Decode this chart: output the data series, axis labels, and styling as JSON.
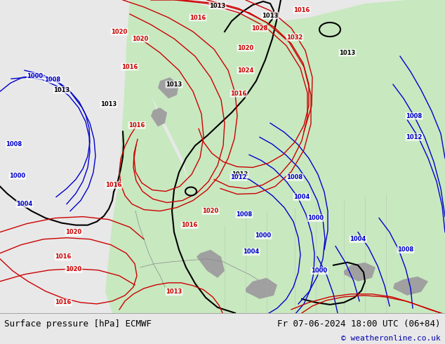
{
  "title_left": "Surface pressure [hPa] ECMWF",
  "title_right": "Fr 07-06-2024 18:00 UTC (06+84)",
  "copyright": "© weatheronline.co.uk",
  "bg_color": "#e8e8e8",
  "land_color": "#c8e8c0",
  "ocean_color": "#dcdcdc",
  "text_color_black": "#000000",
  "text_color_blue": "#0000cc",
  "text_color_red": "#cc0000",
  "text_color_dark": "#1a1a2e",
  "footer_bg": "#f0f0f0",
  "footer_text_color": "#000000",
  "footer_copyright_color": "#0000aa",
  "fig_width": 6.34,
  "fig_height": 4.9,
  "dpi": 100
}
